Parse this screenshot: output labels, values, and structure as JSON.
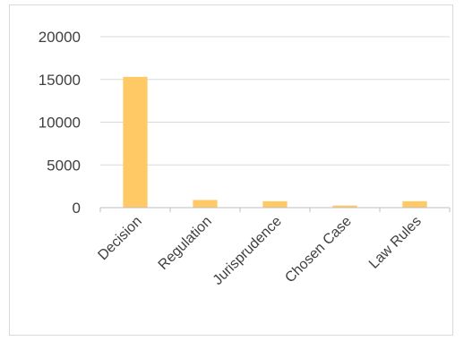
{
  "chart_data": {
    "type": "bar",
    "categories": [
      "Decision",
      "Regulation",
      "Jurisprudence",
      "Chosen Case",
      "Law Rules"
    ],
    "values": [
      15300,
      900,
      750,
      250,
      750
    ],
    "ylim": [
      0,
      20000
    ],
    "yticks": [
      0,
      5000,
      10000,
      15000,
      20000
    ],
    "grid": true,
    "legend": "none",
    "colors": {
      "bar": "#FFC966",
      "grid": "#d9d9d9",
      "axis": "#bfbfbf",
      "text": "#404040"
    }
  }
}
